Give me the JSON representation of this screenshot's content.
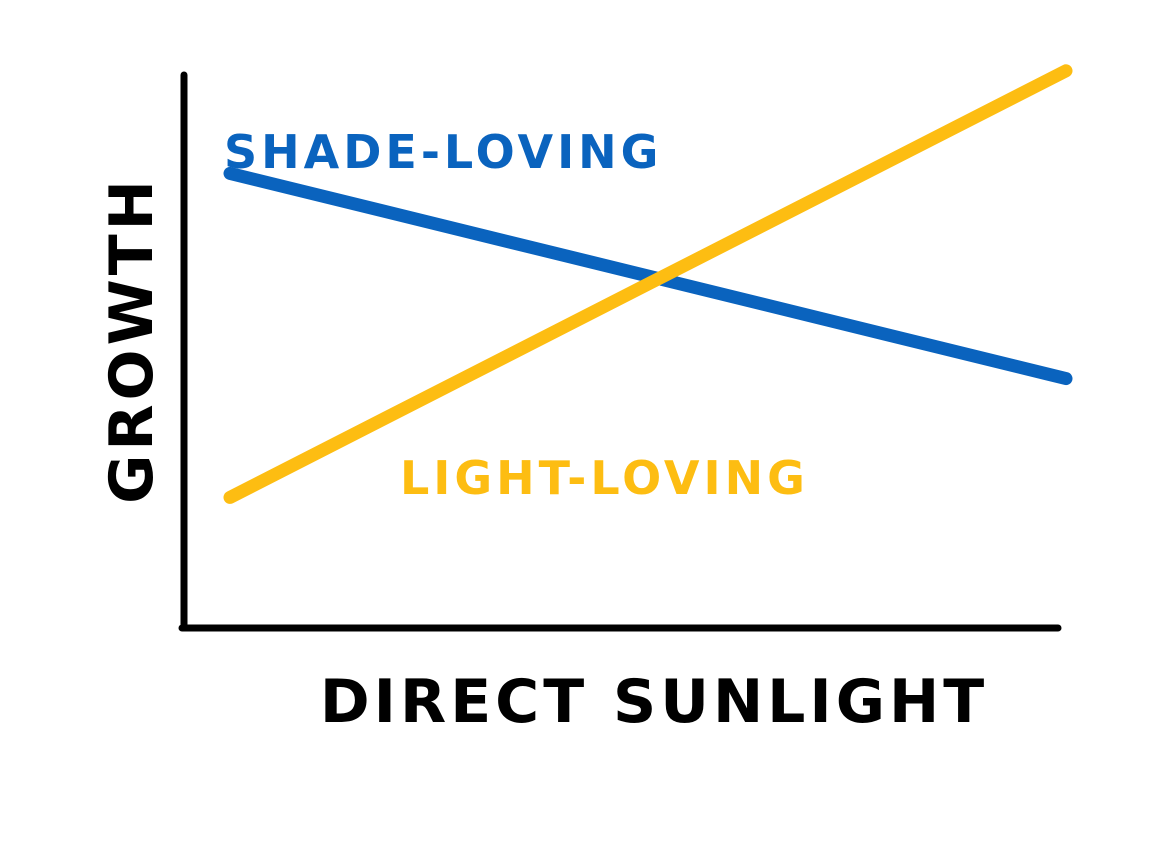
{
  "chart_data": {
    "type": "line",
    "title": "",
    "xlabel": "DIRECT SUNLIGHT",
    "ylabel": "GROWTH",
    "xlim": [
      0,
      1
    ],
    "ylim": [
      0,
      1
    ],
    "grid": false,
    "legend": "inline labels",
    "series": [
      {
        "name": "SHADE-LOVING",
        "color": "#0a63be",
        "x": [
          0,
          1
        ],
        "y": [
          0.79,
          0.41
        ]
      },
      {
        "name": "LIGHT-LOVING",
        "color": "#fdbd12",
        "x": [
          0,
          1
        ],
        "y": [
          0.19,
          0.98
        ]
      }
    ]
  }
}
